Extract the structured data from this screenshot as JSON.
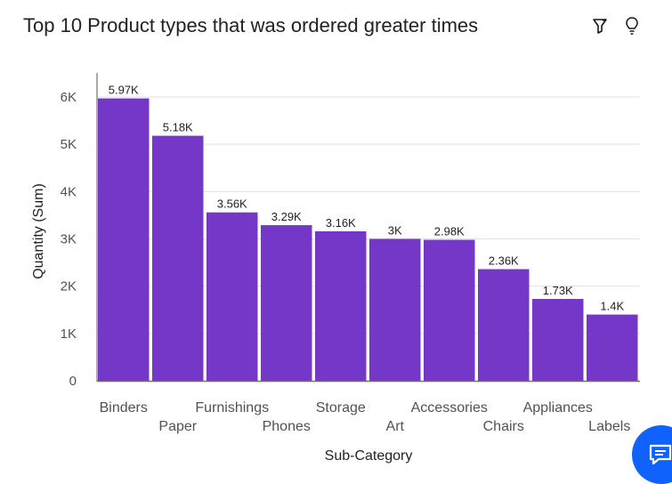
{
  "header": {
    "title": "Top 10 Product types that was ordered greater times",
    "icons": [
      "filter-icon",
      "lightbulb-icon"
    ]
  },
  "colors": {
    "bar": "#7437c8",
    "grid": "#e0e0e0",
    "text": "#525252",
    "fab": "#0f62fe"
  },
  "chart_data": {
    "type": "bar",
    "categories": [
      "Binders",
      "Paper",
      "Furnishings",
      "Phones",
      "Storage",
      "Art",
      "Accessories",
      "Chairs",
      "Appliances",
      "Labels"
    ],
    "values": [
      5970,
      5180,
      3560,
      3290,
      3160,
      3000,
      2980,
      2360,
      1730,
      1400
    ],
    "data_labels": [
      "5.97K",
      "5.18K",
      "3.56K",
      "3.29K",
      "3.16K",
      "3K",
      "2.98K",
      "2.36K",
      "1.73K",
      "1.4K"
    ],
    "title": "Top 10 Product types that was ordered greater times",
    "xlabel": "Sub-Category",
    "ylabel": "Quantity (Sum)",
    "ylim": [
      0,
      6000
    ],
    "yticks": [
      0,
      1000,
      2000,
      3000,
      4000,
      5000,
      6000
    ],
    "ytick_labels": [
      "0",
      "1K",
      "2K",
      "3K",
      "4K",
      "5K",
      "6K"
    ],
    "grid": true
  },
  "chat_button": {
    "icon": "chat-icon"
  }
}
